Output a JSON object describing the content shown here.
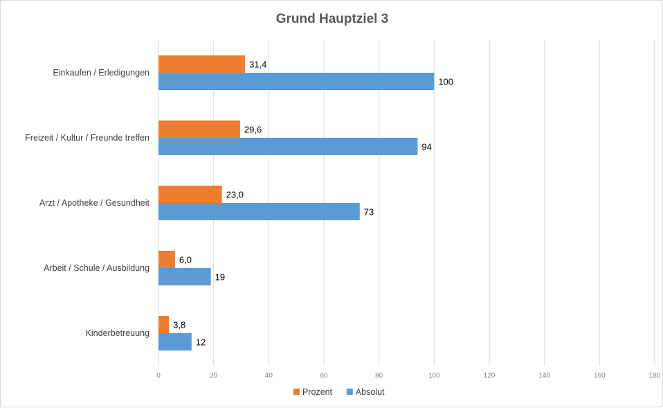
{
  "chart_data": {
    "type": "bar",
    "orientation": "horizontal",
    "title": "Grund Hauptziel 3",
    "categories": [
      "Einkaufen / Erledigungen",
      "Freizeit / Kultur / Freunde treffen",
      "Arzt / Apotheke / Gesundheit",
      "Arbeit / Schule / Ausbildung",
      "Kinderbetreuung"
    ],
    "series": [
      {
        "name": "Prozent",
        "color": "#ed7d31",
        "values": [
          31.4,
          29.6,
          23.0,
          6.0,
          3.8
        ],
        "labels": [
          "31,4",
          "29,6",
          "23,0",
          "6,0",
          "3,8"
        ]
      },
      {
        "name": "Absolut",
        "color": "#5b9bd5",
        "values": [
          100,
          94,
          73,
          19,
          12
        ],
        "labels": [
          "100",
          "94",
          "73",
          "19",
          "12"
        ]
      }
    ],
    "xlim": [
      0,
      180
    ],
    "xticks": [
      0,
      20,
      40,
      60,
      80,
      100,
      120,
      140,
      160,
      180
    ],
    "grid": true,
    "legend": "bottom"
  }
}
